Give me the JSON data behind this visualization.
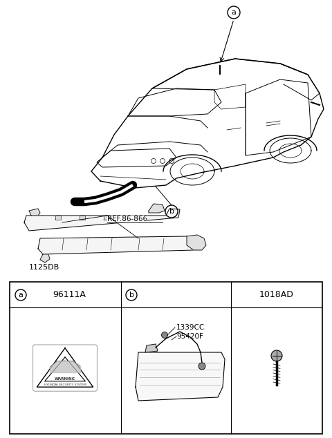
{
  "bg_color": "#ffffff",
  "table": {
    "cell_a_label": "96111A",
    "cell_c_label": "1018AD",
    "part1": "1339CC",
    "part2": "95420F"
  },
  "diagram": {
    "ref_label": "REF.86-866",
    "part_label": "1125DB",
    "callout_a": "a",
    "callout_b": "b"
  },
  "car": {
    "scale": 1.0
  }
}
